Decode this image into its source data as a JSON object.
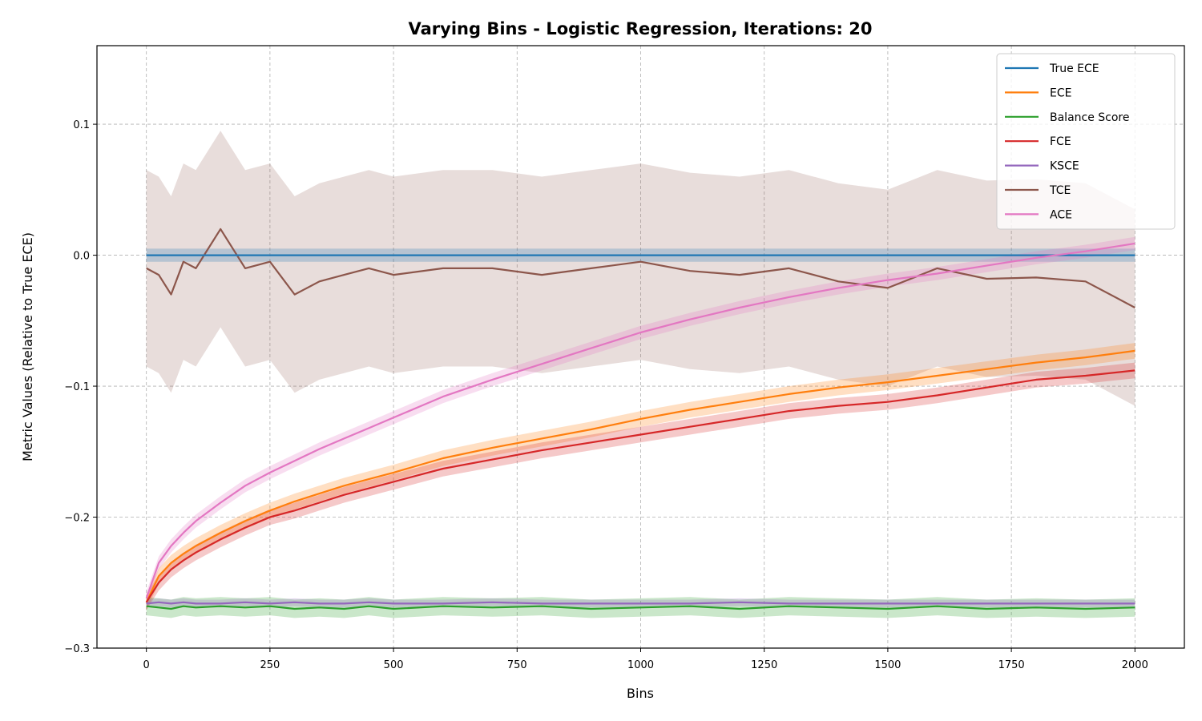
{
  "chart_data": {
    "type": "line",
    "title": "Varying Bins - Logistic Regression, Iterations: 20",
    "xlabel": "Bins",
    "ylabel": "Metric Values (Relative to True ECE)",
    "xlim": [
      -100,
      2100
    ],
    "ylim": [
      -0.3,
      0.16
    ],
    "xticks": [
      0,
      250,
      500,
      750,
      1000,
      1250,
      1500,
      1750,
      2000
    ],
    "xtick_labels": [
      "0",
      "250",
      "500",
      "750",
      "1000",
      "1250",
      "1500",
      "1750",
      "2000"
    ],
    "yticks": [
      -0.3,
      -0.2,
      -0.1,
      0.0,
      0.1
    ],
    "ytick_labels": [
      "−0.3",
      "−0.2",
      "−0.1",
      "0.0",
      "0.1"
    ],
    "grid": true,
    "legend_position": "top-right",
    "x": [
      0,
      25,
      50,
      75,
      100,
      150,
      200,
      250,
      300,
      350,
      400,
      450,
      500,
      600,
      700,
      800,
      900,
      1000,
      1100,
      1200,
      1300,
      1400,
      1500,
      1600,
      1700,
      1800,
      1900,
      2000
    ],
    "series": [
      {
        "name": "True ECE",
        "color": "#1f77b4",
        "values": [
          0,
          0,
          0,
          0,
          0,
          0,
          0,
          0,
          0,
          0,
          0,
          0,
          0,
          0,
          0,
          0,
          0,
          0,
          0,
          0,
          0,
          0,
          0,
          0,
          0,
          0,
          0,
          0
        ],
        "band": 0.005
      },
      {
        "name": "ECE",
        "color": "#ff7f0e",
        "values": [
          -0.265,
          -0.245,
          -0.235,
          -0.228,
          -0.222,
          -0.212,
          -0.203,
          -0.195,
          -0.188,
          -0.182,
          -0.176,
          -0.171,
          -0.166,
          -0.155,
          -0.147,
          -0.14,
          -0.133,
          -0.125,
          -0.118,
          -0.112,
          -0.106,
          -0.101,
          -0.097,
          -0.092,
          -0.087,
          -0.082,
          -0.078,
          -0.073
        ],
        "band": 0.006
      },
      {
        "name": "Balance Score",
        "color": "#2ca02c",
        "values": [
          -0.268,
          -0.269,
          -0.27,
          -0.268,
          -0.269,
          -0.268,
          -0.269,
          -0.268,
          -0.27,
          -0.269,
          -0.27,
          -0.268,
          -0.27,
          -0.268,
          -0.269,
          -0.268,
          -0.27,
          -0.269,
          -0.268,
          -0.27,
          -0.268,
          -0.269,
          -0.27,
          -0.268,
          -0.27,
          -0.269,
          -0.27,
          -0.269
        ],
        "band": 0.007
      },
      {
        "name": "FCE",
        "color": "#d62728",
        "values": [
          -0.265,
          -0.25,
          -0.24,
          -0.233,
          -0.227,
          -0.217,
          -0.208,
          -0.2,
          -0.195,
          -0.189,
          -0.183,
          -0.178,
          -0.173,
          -0.163,
          -0.156,
          -0.149,
          -0.143,
          -0.137,
          -0.131,
          -0.125,
          -0.119,
          -0.115,
          -0.112,
          -0.107,
          -0.101,
          -0.095,
          -0.092,
          -0.088
        ],
        "band": 0.006
      },
      {
        "name": "KSCE",
        "color": "#9467bd",
        "values": [
          -0.266,
          -0.265,
          -0.266,
          -0.265,
          -0.266,
          -0.266,
          -0.265,
          -0.266,
          -0.265,
          -0.266,
          -0.266,
          -0.265,
          -0.266,
          -0.266,
          -0.265,
          -0.266,
          -0.266,
          -0.266,
          -0.266,
          -0.265,
          -0.266,
          -0.266,
          -0.266,
          -0.266,
          -0.266,
          -0.266,
          -0.266,
          -0.266
        ],
        "band": 0.003
      },
      {
        "name": "TCE",
        "color": "#8c564b",
        "values": [
          -0.01,
          -0.015,
          -0.03,
          -0.005,
          -0.01,
          0.02,
          -0.01,
          -0.005,
          -0.03,
          -0.02,
          -0.015,
          -0.01,
          -0.015,
          -0.01,
          -0.01,
          -0.015,
          -0.01,
          -0.005,
          -0.012,
          -0.015,
          -0.01,
          -0.02,
          -0.025,
          -0.01,
          -0.018,
          -0.017,
          -0.02,
          -0.04
        ],
        "band": 0.075
      },
      {
        "name": "ACE",
        "color": "#e377c2",
        "values": [
          -0.262,
          -0.235,
          -0.222,
          -0.212,
          -0.203,
          -0.189,
          -0.176,
          -0.166,
          -0.157,
          -0.148,
          -0.14,
          -0.132,
          -0.124,
          -0.108,
          -0.095,
          -0.083,
          -0.071,
          -0.059,
          -0.049,
          -0.04,
          -0.032,
          -0.025,
          -0.019,
          -0.014,
          -0.008,
          -0.002,
          0.003,
          0.009
        ],
        "band": 0.005
      }
    ]
  }
}
